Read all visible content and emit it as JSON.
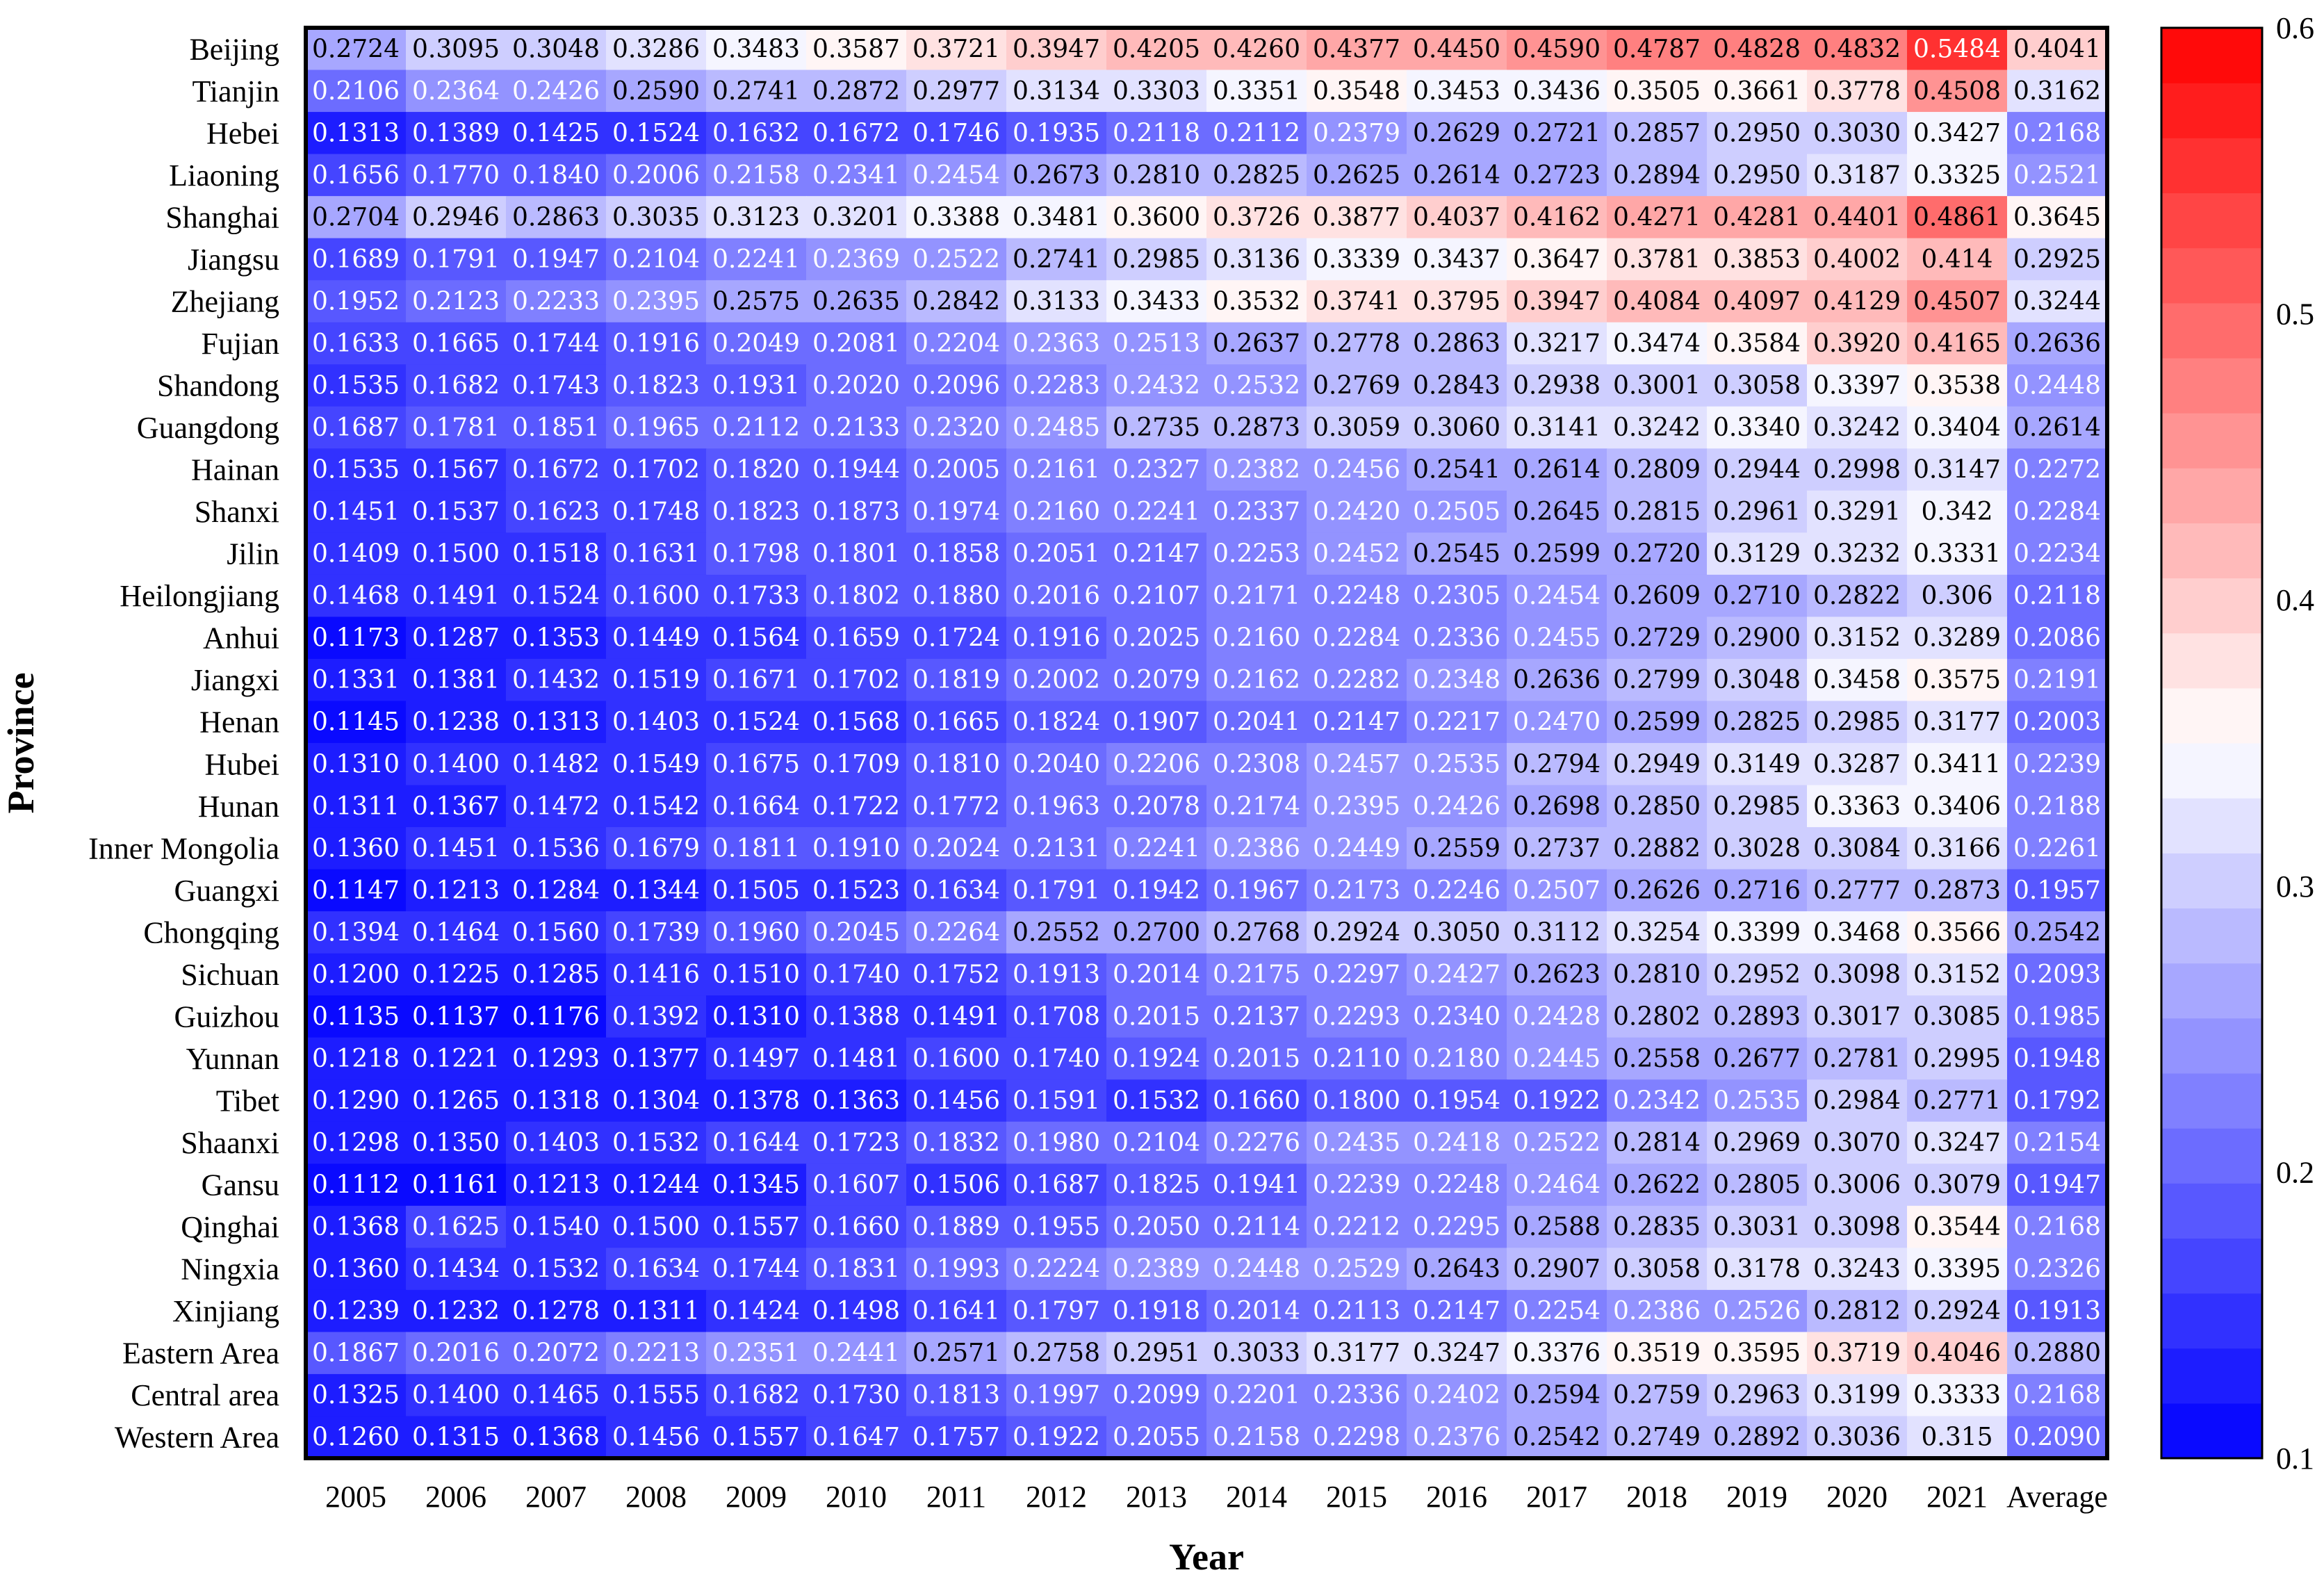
{
  "chart_data": {
    "type": "heatmap",
    "title": "",
    "xlabel": "Year",
    "ylabel": "Province",
    "columns": [
      "2005",
      "2006",
      "2007",
      "2008",
      "2009",
      "2010",
      "2011",
      "2012",
      "2013",
      "2014",
      "2015",
      "2016",
      "2017",
      "2018",
      "2019",
      "2020",
      "2021",
      "Average"
    ],
    "rows": [
      "Beijing",
      "Tianjin",
      "Hebei",
      "Liaoning",
      "Shanghai",
      "Jiangsu",
      "Zhejiang",
      "Fujian",
      "Shandong",
      "Guangdong",
      "Hainan",
      "Shanxi",
      "Jilin",
      "Heilongjiang",
      "Anhui",
      "Jiangxi",
      "Henan",
      "Hubei",
      "Hunan",
      "Inner Mongolia",
      "Guangxi",
      "Chongqing",
      "Sichuan",
      "Guizhou",
      "Yunnan",
      "Tibet",
      "Shaanxi",
      "Gansu",
      "Qinghai",
      "Ningxia",
      "Xinjiang",
      "Eastern Area",
      "Central area",
      "Western Area"
    ],
    "values": [
      [
        "0.2724",
        "0.3095",
        "0.3048",
        "0.3286",
        "0.3483",
        "0.3587",
        "0.3721",
        "0.3947",
        "0.4205",
        "0.4260",
        "0.4377",
        "0.4450",
        "0.4590",
        "0.4787",
        "0.4828",
        "0.4832",
        "0.5484",
        "0.4041"
      ],
      [
        "0.2106",
        "0.2364",
        "0.2426",
        "0.2590",
        "0.2741",
        "0.2872",
        "0.2977",
        "0.3134",
        "0.3303",
        "0.3351",
        "0.3548",
        "0.3453",
        "0.3436",
        "0.3505",
        "0.3661",
        "0.3778",
        "0.4508",
        "0.3162"
      ],
      [
        "0.1313",
        "0.1389",
        "0.1425",
        "0.1524",
        "0.1632",
        "0.1672",
        "0.1746",
        "0.1935",
        "0.2118",
        "0.2112",
        "0.2379",
        "0.2629",
        "0.2721",
        "0.2857",
        "0.2950",
        "0.3030",
        "0.3427",
        "0.2168"
      ],
      [
        "0.1656",
        "0.1770",
        "0.1840",
        "0.2006",
        "0.2158",
        "0.2341",
        "0.2454",
        "0.2673",
        "0.2810",
        "0.2825",
        "0.2625",
        "0.2614",
        "0.2723",
        "0.2894",
        "0.2950",
        "0.3187",
        "0.3325",
        "0.2521"
      ],
      [
        "0.2704",
        "0.2946",
        "0.2863",
        "0.3035",
        "0.3123",
        "0.3201",
        "0.3388",
        "0.3481",
        "0.3600",
        "0.3726",
        "0.3877",
        "0.4037",
        "0.4162",
        "0.4271",
        "0.4281",
        "0.4401",
        "0.4861",
        "0.3645"
      ],
      [
        "0.1689",
        "0.1791",
        "0.1947",
        "0.2104",
        "0.2241",
        "0.2369",
        "0.2522",
        "0.2741",
        "0.2985",
        "0.3136",
        "0.3339",
        "0.3437",
        "0.3647",
        "0.3781",
        "0.3853",
        "0.4002",
        "0.414",
        "0.2925"
      ],
      [
        "0.1952",
        "0.2123",
        "0.2233",
        "0.2395",
        "0.2575",
        "0.2635",
        "0.2842",
        "0.3133",
        "0.3433",
        "0.3532",
        "0.3741",
        "0.3795",
        "0.3947",
        "0.4084",
        "0.4097",
        "0.4129",
        "0.4507",
        "0.3244"
      ],
      [
        "0.1633",
        "0.1665",
        "0.1744",
        "0.1916",
        "0.2049",
        "0.2081",
        "0.2204",
        "0.2363",
        "0.2513",
        "0.2637",
        "0.2778",
        "0.2863",
        "0.3217",
        "0.3474",
        "0.3584",
        "0.3920",
        "0.4165",
        "0.2636"
      ],
      [
        "0.1535",
        "0.1682",
        "0.1743",
        "0.1823",
        "0.1931",
        "0.2020",
        "0.2096",
        "0.2283",
        "0.2432",
        "0.2532",
        "0.2769",
        "0.2843",
        "0.2938",
        "0.3001",
        "0.3058",
        "0.3397",
        "0.3538",
        "0.2448"
      ],
      [
        "0.1687",
        "0.1781",
        "0.1851",
        "0.1965",
        "0.2112",
        "0.2133",
        "0.2320",
        "0.2485",
        "0.2735",
        "0.2873",
        "0.3059",
        "0.3060",
        "0.3141",
        "0.3242",
        "0.3340",
        "0.3242",
        "0.3404",
        "0.2614"
      ],
      [
        "0.1535",
        "0.1567",
        "0.1672",
        "0.1702",
        "0.1820",
        "0.1944",
        "0.2005",
        "0.2161",
        "0.2327",
        "0.2382",
        "0.2456",
        "0.2541",
        "0.2614",
        "0.2809",
        "0.2944",
        "0.2998",
        "0.3147",
        "0.2272"
      ],
      [
        "0.1451",
        "0.1537",
        "0.1623",
        "0.1748",
        "0.1823",
        "0.1873",
        "0.1974",
        "0.2160",
        "0.2241",
        "0.2337",
        "0.2420",
        "0.2505",
        "0.2645",
        "0.2815",
        "0.2961",
        "0.3291",
        "0.342",
        "0.2284"
      ],
      [
        "0.1409",
        "0.1500",
        "0.1518",
        "0.1631",
        "0.1798",
        "0.1801",
        "0.1858",
        "0.2051",
        "0.2147",
        "0.2253",
        "0.2452",
        "0.2545",
        "0.2599",
        "0.2720",
        "0.3129",
        "0.3232",
        "0.3331",
        "0.2234"
      ],
      [
        "0.1468",
        "0.1491",
        "0.1524",
        "0.1600",
        "0.1733",
        "0.1802",
        "0.1880",
        "0.2016",
        "0.2107",
        "0.2171",
        "0.2248",
        "0.2305",
        "0.2454",
        "0.2609",
        "0.2710",
        "0.2822",
        "0.306",
        "0.2118"
      ],
      [
        "0.1173",
        "0.1287",
        "0.1353",
        "0.1449",
        "0.1564",
        "0.1659",
        "0.1724",
        "0.1916",
        "0.2025",
        "0.2160",
        "0.2284",
        "0.2336",
        "0.2455",
        "0.2729",
        "0.2900",
        "0.3152",
        "0.3289",
        "0.2086"
      ],
      [
        "0.1331",
        "0.1381",
        "0.1432",
        "0.1519",
        "0.1671",
        "0.1702",
        "0.1819",
        "0.2002",
        "0.2079",
        "0.2162",
        "0.2282",
        "0.2348",
        "0.2636",
        "0.2799",
        "0.3048",
        "0.3458",
        "0.3575",
        "0.2191"
      ],
      [
        "0.1145",
        "0.1238",
        "0.1313",
        "0.1403",
        "0.1524",
        "0.1568",
        "0.1665",
        "0.1824",
        "0.1907",
        "0.2041",
        "0.2147",
        "0.2217",
        "0.2470",
        "0.2599",
        "0.2825",
        "0.2985",
        "0.3177",
        "0.2003"
      ],
      [
        "0.1310",
        "0.1400",
        "0.1482",
        "0.1549",
        "0.1675",
        "0.1709",
        "0.1810",
        "0.2040",
        "0.2206",
        "0.2308",
        "0.2457",
        "0.2535",
        "0.2794",
        "0.2949",
        "0.3149",
        "0.3287",
        "0.3411",
        "0.2239"
      ],
      [
        "0.1311",
        "0.1367",
        "0.1472",
        "0.1542",
        "0.1664",
        "0.1722",
        "0.1772",
        "0.1963",
        "0.2078",
        "0.2174",
        "0.2395",
        "0.2426",
        "0.2698",
        "0.2850",
        "0.2985",
        "0.3363",
        "0.3406",
        "0.2188"
      ],
      [
        "0.1360",
        "0.1451",
        "0.1536",
        "0.1679",
        "0.1811",
        "0.1910",
        "0.2024",
        "0.2131",
        "0.2241",
        "0.2386",
        "0.2449",
        "0.2559",
        "0.2737",
        "0.2882",
        "0.3028",
        "0.3084",
        "0.3166",
        "0.2261"
      ],
      [
        "0.1147",
        "0.1213",
        "0.1284",
        "0.1344",
        "0.1505",
        "0.1523",
        "0.1634",
        "0.1791",
        "0.1942",
        "0.1967",
        "0.2173",
        "0.2246",
        "0.2507",
        "0.2626",
        "0.2716",
        "0.2777",
        "0.2873",
        "0.1957"
      ],
      [
        "0.1394",
        "0.1464",
        "0.1560",
        "0.1739",
        "0.1960",
        "0.2045",
        "0.2264",
        "0.2552",
        "0.2700",
        "0.2768",
        "0.2924",
        "0.3050",
        "0.3112",
        "0.3254",
        "0.3399",
        "0.3468",
        "0.3566",
        "0.2542"
      ],
      [
        "0.1200",
        "0.1225",
        "0.1285",
        "0.1416",
        "0.1510",
        "0.1740",
        "0.1752",
        "0.1913",
        "0.2014",
        "0.2175",
        "0.2297",
        "0.2427",
        "0.2623",
        "0.2810",
        "0.2952",
        "0.3098",
        "0.3152",
        "0.2093"
      ],
      [
        "0.1135",
        "0.1137",
        "0.1176",
        "0.1392",
        "0.1310",
        "0.1388",
        "0.1491",
        "0.1708",
        "0.2015",
        "0.2137",
        "0.2293",
        "0.2340",
        "0.2428",
        "0.2802",
        "0.2893",
        "0.3017",
        "0.3085",
        "0.1985"
      ],
      [
        "0.1218",
        "0.1221",
        "0.1293",
        "0.1377",
        "0.1497",
        "0.1481",
        "0.1600",
        "0.1740",
        "0.1924",
        "0.2015",
        "0.2110",
        "0.2180",
        "0.2445",
        "0.2558",
        "0.2677",
        "0.2781",
        "0.2995",
        "0.1948"
      ],
      [
        "0.1290",
        "0.1265",
        "0.1318",
        "0.1304",
        "0.1378",
        "0.1363",
        "0.1456",
        "0.1591",
        "0.1532",
        "0.1660",
        "0.1800",
        "0.1954",
        "0.1922",
        "0.2342",
        "0.2535",
        "0.2984",
        "0.2771",
        "0.1792"
      ],
      [
        "0.1298",
        "0.1350",
        "0.1403",
        "0.1532",
        "0.1644",
        "0.1723",
        "0.1832",
        "0.1980",
        "0.2104",
        "0.2276",
        "0.2435",
        "0.2418",
        "0.2522",
        "0.2814",
        "0.2969",
        "0.3070",
        "0.3247",
        "0.2154"
      ],
      [
        "0.1112",
        "0.1161",
        "0.1213",
        "0.1244",
        "0.1345",
        "0.1607",
        "0.1506",
        "0.1687",
        "0.1825",
        "0.1941",
        "0.2239",
        "0.2248",
        "0.2464",
        "0.2622",
        "0.2805",
        "0.3006",
        "0.3079",
        "0.1947"
      ],
      [
        "0.1368",
        "0.1625",
        "0.1540",
        "0.1500",
        "0.1557",
        "0.1660",
        "0.1889",
        "0.1955",
        "0.2050",
        "0.2114",
        "0.2212",
        "0.2295",
        "0.2588",
        "0.2835",
        "0.3031",
        "0.3098",
        "0.3544",
        "0.2168"
      ],
      [
        "0.1360",
        "0.1434",
        "0.1532",
        "0.1634",
        "0.1744",
        "0.1831",
        "0.1993",
        "0.2224",
        "0.2389",
        "0.2448",
        "0.2529",
        "0.2643",
        "0.2907",
        "0.3058",
        "0.3178",
        "0.3243",
        "0.3395",
        "0.2326"
      ],
      [
        "0.1239",
        "0.1232",
        "0.1278",
        "0.1311",
        "0.1424",
        "0.1498",
        "0.1641",
        "0.1797",
        "0.1918",
        "0.2014",
        "0.2113",
        "0.2147",
        "0.2254",
        "0.2386",
        "0.2526",
        "0.2812",
        "0.2924",
        "0.1913"
      ],
      [
        "0.1867",
        "0.2016",
        "0.2072",
        "0.2213",
        "0.2351",
        "0.2441",
        "0.2571",
        "0.2758",
        "0.2951",
        "0.3033",
        "0.3177",
        "0.3247",
        "0.3376",
        "0.3519",
        "0.3595",
        "0.3719",
        "0.4046",
        "0.2880"
      ],
      [
        "0.1325",
        "0.1400",
        "0.1465",
        "0.1555",
        "0.1682",
        "0.1730",
        "0.1813",
        "0.1997",
        "0.2099",
        "0.2201",
        "0.2336",
        "0.2402",
        "0.2594",
        "0.2759",
        "0.2963",
        "0.3199",
        "0.3333",
        "0.2168"
      ],
      [
        "0.1260",
        "0.1315",
        "0.1368",
        "0.1456",
        "0.1557",
        "0.1647",
        "0.1757",
        "0.1922",
        "0.2055",
        "0.2158",
        "0.2298",
        "0.2376",
        "0.2542",
        "0.2749",
        "0.2892",
        "0.3036",
        "0.315",
        "0.2090"
      ]
    ],
    "colorbar": {
      "min": 0.1,
      "max": 0.6,
      "ticks": [
        "0.1",
        "0.2",
        "0.3",
        "0.4",
        "0.5",
        "0.6"
      ],
      "colors": {
        "low": "#0000ff",
        "mid": "#ffffff",
        "high": "#ff0000"
      },
      "levels": 26
    }
  }
}
